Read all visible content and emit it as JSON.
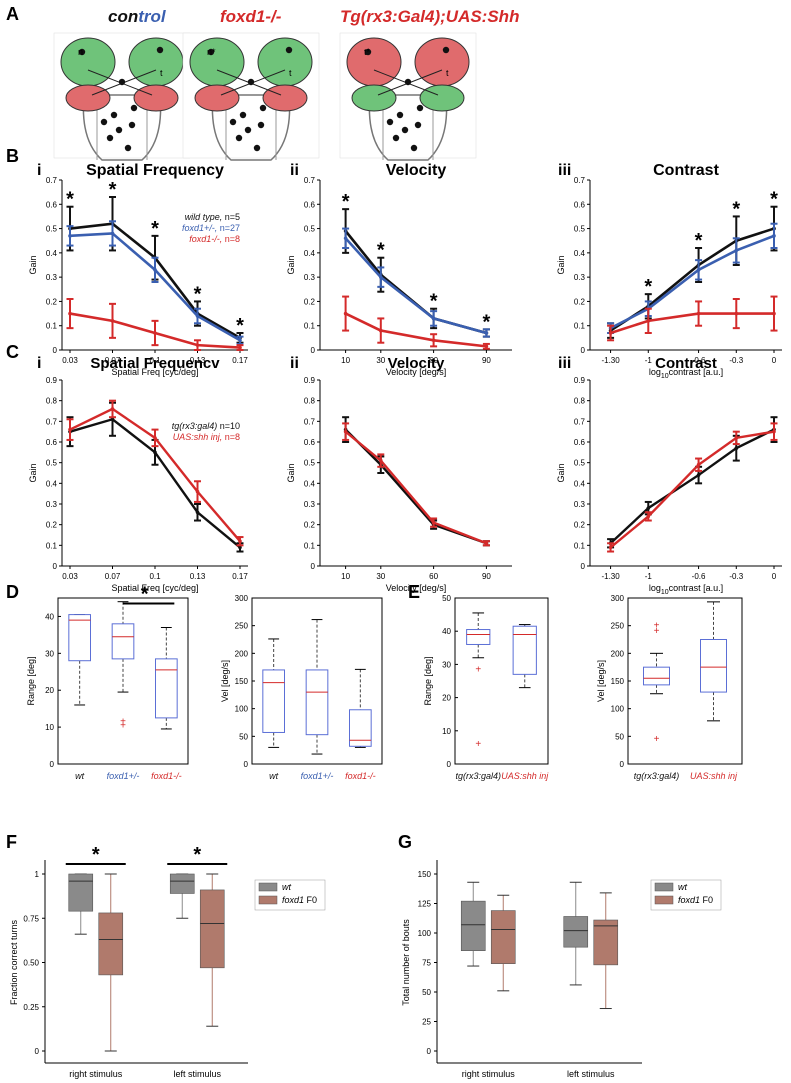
{
  "colors": {
    "black": "#111111",
    "blue": "#3a5fb0",
    "red": "#d42a2a",
    "wt_box": "#8a8a8a",
    "foxd1_box": "#b07a6c",
    "boxplot_blue": "#5b6fd6",
    "green": "#5fb86a",
    "pink": "#e2585f"
  },
  "panel_A": {
    "letter": "A",
    "titles": [
      {
        "segments": [
          {
            "text": "con",
            "color": "black"
          },
          {
            "text": "trol",
            "color": "blue"
          }
        ]
      },
      {
        "segments": [
          {
            "text": "foxd1-/-",
            "color": "red"
          }
        ]
      },
      {
        "segments": [
          {
            "text": "Tg(rx3:Gal4);UAS:Shh",
            "color": "red"
          }
        ]
      }
    ],
    "labels": [
      "n",
      "t",
      "n*",
      "t",
      "t*",
      "t"
    ]
  },
  "panel_labels": {
    "B": "B",
    "C": "C",
    "D": "D",
    "E": "E",
    "F": "F",
    "G": "G"
  },
  "chart_data": [
    {
      "id": "B_i",
      "roman": "i",
      "type": "line",
      "title": "Spatial Frequency",
      "xlabel": "Spatial Freq [cyc/deg]",
      "ylabel": "Gain",
      "ylim": [
        0,
        0.7
      ],
      "y_ticks": [
        "0",
        "0.1",
        "0.2",
        "0.3",
        "0.4",
        "0.5",
        "0.6",
        "0.7"
      ],
      "x_ticks": [
        "0.03",
        "0.07",
        "0.1",
        "0.13",
        "0.17"
      ],
      "series": [
        {
          "name": "wild type, n=5",
          "color": "black",
          "values": [
            0.5,
            0.52,
            0.38,
            0.15,
            0.05
          ],
          "err": [
            0.09,
            0.11,
            0.09,
            0.05,
            0.02
          ]
        },
        {
          "name": "foxd1+/-, n=27",
          "color": "blue",
          "values": [
            0.47,
            0.48,
            0.33,
            0.14,
            0.04
          ],
          "err": [
            0.04,
            0.05,
            0.05,
            0.03,
            0.015
          ]
        },
        {
          "name": "foxd1-/-, n=8",
          "color": "red",
          "values": [
            0.15,
            0.12,
            0.07,
            0.02,
            0.01
          ],
          "err": [
            0.06,
            0.07,
            0.05,
            0.02,
            0.01
          ]
        }
      ],
      "stars": [
        0,
        1,
        2,
        3,
        4
      ]
    },
    {
      "id": "B_ii",
      "roman": "ii",
      "type": "line",
      "title": "Velocity",
      "xlabel": "Velocity [deg/s]",
      "ylabel": "Gain",
      "ylim": [
        0,
        0.7
      ],
      "y_ticks": [
        "0",
        "0.1",
        "0.2",
        "0.3",
        "0.4",
        "0.5",
        "0.6",
        "0.7"
      ],
      "x_ticks": [
        "10",
        "30",
        "60",
        "90"
      ],
      "series": [
        {
          "name": "wild type",
          "color": "black",
          "values": [
            0.49,
            0.31,
            0.13,
            0.07
          ],
          "err": [
            0.09,
            0.07,
            0.04,
            0.015
          ]
        },
        {
          "name": "foxd1+/-",
          "color": "blue",
          "values": [
            0.46,
            0.3,
            0.13,
            0.07
          ],
          "err": [
            0.04,
            0.04,
            0.03,
            0.015
          ]
        },
        {
          "name": "foxd1-/-",
          "color": "red",
          "values": [
            0.15,
            0.08,
            0.04,
            0.015
          ],
          "err": [
            0.07,
            0.05,
            0.025,
            0.01
          ]
        }
      ],
      "stars": [
        0,
        1,
        2,
        3
      ]
    },
    {
      "id": "B_iii",
      "roman": "iii",
      "type": "line",
      "title": "Contrast",
      "xlabel": "log10contrast [a.u.]",
      "xlabel_main": "log",
      "xlabel_sub": "10",
      "xlabel_rest": "contrast [a.u.]",
      "ylabel": "Gain",
      "ylim": [
        0,
        0.7
      ],
      "y_ticks": [
        "0",
        "0.1",
        "0.2",
        "0.3",
        "0.4",
        "0.5",
        "0.6",
        "0.7"
      ],
      "x_ticks": [
        "-1.30",
        "-1",
        "-0.6",
        "-0.3",
        "0"
      ],
      "series": [
        {
          "name": "wild type",
          "color": "black",
          "values": [
            0.08,
            0.18,
            0.35,
            0.45,
            0.5
          ],
          "err": [
            0.03,
            0.05,
            0.07,
            0.1,
            0.09
          ]
        },
        {
          "name": "foxd1+/-",
          "color": "blue",
          "values": [
            0.09,
            0.17,
            0.33,
            0.41,
            0.47
          ],
          "err": [
            0.02,
            0.03,
            0.04,
            0.05,
            0.05
          ]
        },
        {
          "name": "foxd1-/-",
          "color": "red",
          "values": [
            0.07,
            0.12,
            0.15,
            0.15,
            0.15
          ],
          "err": [
            0.03,
            0.05,
            0.05,
            0.06,
            0.07
          ]
        }
      ],
      "stars": [
        1,
        2,
        3,
        4
      ]
    },
    {
      "id": "C_i",
      "roman": "i",
      "type": "line",
      "title": "Spatial Frequencv",
      "xlabel": "Spatial Freq [cyc/deg]",
      "ylabel": "Gain",
      "ylim": [
        0,
        0.9
      ],
      "y_ticks": [
        "0",
        "0.1",
        "0.2",
        "0.3",
        "0.4",
        "0.5",
        "0.6",
        "0.7",
        "0.8",
        "0.9"
      ],
      "x_ticks": [
        "0.03",
        "0.07",
        "0.1",
        "0.13",
        "0.17"
      ],
      "series": [
        {
          "name": "tg(rx3:gal4) n=10",
          "color": "black",
          "values": [
            0.65,
            0.71,
            0.55,
            0.26,
            0.09
          ],
          "err": [
            0.07,
            0.08,
            0.06,
            0.04,
            0.02
          ]
        },
        {
          "name": "UAS:shh inj, n=8",
          "color": "red",
          "values": [
            0.66,
            0.76,
            0.62,
            0.36,
            0.12
          ],
          "err": [
            0.05,
            0.04,
            0.04,
            0.05,
            0.02
          ]
        }
      ],
      "stars": []
    },
    {
      "id": "C_ii",
      "roman": "ii",
      "type": "line",
      "title": "Velocity",
      "xlabel": "Velocity [deg/s]",
      "ylabel": "Gain",
      "ylim": [
        0,
        0.9
      ],
      "y_ticks": [
        "0",
        "0.1",
        "0.2",
        "0.3",
        "0.4",
        "0.5",
        "0.6",
        "0.7",
        "0.8",
        "0.9"
      ],
      "x_ticks": [
        "10",
        "30",
        "60",
        "90"
      ],
      "series": [
        {
          "name": "tg(rx3:gal4)",
          "color": "black",
          "values": [
            0.66,
            0.49,
            0.2,
            0.11
          ],
          "err": [
            0.06,
            0.04,
            0.02,
            0.01
          ]
        },
        {
          "name": "UAS:shh inj",
          "color": "red",
          "values": [
            0.65,
            0.51,
            0.21,
            0.11
          ],
          "err": [
            0.04,
            0.03,
            0.02,
            0.01
          ]
        }
      ],
      "stars": []
    },
    {
      "id": "C_iii",
      "roman": "iii",
      "type": "line",
      "title": "Contrast",
      "xlabel": "log10contrast [a.u.]",
      "xlabel_main": "log",
      "xlabel_sub": "10",
      "xlabel_rest": "contrast [a.u.]",
      "ylabel": "Gain",
      "ylim": [
        0,
        0.9
      ],
      "y_ticks": [
        "0",
        "0.1",
        "0.2",
        "0.3",
        "0.4",
        "0.5",
        "0.6",
        "0.7",
        "0.8",
        "0.9"
      ],
      "x_ticks": [
        "-1.30",
        "-1",
        "-0.6",
        "-0.3",
        "0"
      ],
      "series": [
        {
          "name": "tg(rx3:gal4)",
          "color": "black",
          "values": [
            0.11,
            0.28,
            0.44,
            0.57,
            0.66
          ],
          "err": [
            0.02,
            0.03,
            0.04,
            0.06,
            0.06
          ]
        },
        {
          "name": "UAS:shh inj",
          "color": "red",
          "values": [
            0.09,
            0.24,
            0.49,
            0.62,
            0.65
          ],
          "err": [
            0.02,
            0.02,
            0.03,
            0.03,
            0.04
          ]
        }
      ],
      "stars": []
    },
    {
      "id": "D_range",
      "type": "box",
      "ylabel": "Range [deg]",
      "ylim": [
        0,
        45
      ],
      "y_ticks": [
        "0",
        "10",
        "20",
        "30",
        "40"
      ],
      "categories": [
        "wt",
        "foxd1+/-",
        "foxd1-/-"
      ],
      "cat_colors": [
        "black",
        "blue",
        "red"
      ],
      "boxes": [
        {
          "q1": 28,
          "median": 39,
          "q3": 40.5,
          "whislo": 16,
          "whishi": 40.5,
          "outliers": []
        },
        {
          "q1": 28.5,
          "median": 34.5,
          "q3": 38,
          "whislo": 19.5,
          "whishi": 44,
          "outliers": [
            10.5,
            11.5
          ]
        },
        {
          "q1": 12.5,
          "median": 25.5,
          "q3": 28.5,
          "whislo": 9.5,
          "whishi": 37,
          "outliers": []
        }
      ],
      "sig": {
        "from": 1,
        "to": 2,
        "label": "*"
      }
    },
    {
      "id": "D_vel",
      "type": "box",
      "ylabel": "Vel [deg/s]",
      "ylim": [
        0,
        300
      ],
      "y_ticks": [
        "0",
        "50",
        "100",
        "150",
        "200",
        "250",
        "300"
      ],
      "categories": [
        "wt",
        "foxd1+/-",
        "foxd1-/-"
      ],
      "cat_colors": [
        "black",
        "blue",
        "red"
      ],
      "boxes": [
        {
          "q1": 57,
          "median": 147,
          "q3": 170,
          "whislo": 30,
          "whishi": 226,
          "outliers": []
        },
        {
          "q1": 53,
          "median": 130,
          "q3": 170,
          "whislo": 18,
          "whishi": 261,
          "outliers": []
        },
        {
          "q1": 32,
          "median": 43,
          "q3": 98,
          "whislo": 30,
          "whishi": 171,
          "outliers": []
        }
      ]
    },
    {
      "id": "E_range",
      "type": "box",
      "ylabel": "Range [deg]",
      "ylim": [
        0,
        50
      ],
      "y_ticks": [
        "0",
        "10",
        "20",
        "30",
        "40",
        "50"
      ],
      "categories": [
        "tg(rx3:gal4)",
        "UAS:shh inj"
      ],
      "cat_colors": [
        "black",
        "red"
      ],
      "boxes": [
        {
          "q1": 36,
          "median": 39,
          "q3": 40.5,
          "whislo": 32,
          "whishi": 45.5,
          "outliers": [
            28.5,
            6
          ]
        },
        {
          "q1": 27,
          "median": 39,
          "q3": 41.5,
          "whislo": 23,
          "whishi": 42,
          "outliers": []
        }
      ]
    },
    {
      "id": "E_vel",
      "type": "box",
      "ylabel": "Vel [deg/s]",
      "ylim": [
        0,
        300
      ],
      "y_ticks": [
        "0",
        "50",
        "100",
        "150",
        "200",
        "250",
        "300"
      ],
      "categories": [
        "tg(rx3:gal4)",
        "UAS:shh inj"
      ],
      "cat_colors": [
        "black",
        "red"
      ],
      "boxes": [
        {
          "q1": 143,
          "median": 155,
          "q3": 175,
          "whislo": 127,
          "whishi": 200,
          "outliers": [
            250,
            240,
            45
          ]
        },
        {
          "q1": 130,
          "median": 175,
          "q3": 225,
          "whislo": 78,
          "whishi": 293,
          "outliers": []
        }
      ]
    },
    {
      "id": "F",
      "type": "box",
      "ylabel": "Fraction correct turns",
      "ylim": [
        0,
        1
      ],
      "y_ticks": [
        "0",
        "0.25",
        "0.50",
        "0.75",
        "1"
      ],
      "categories": [
        "right stimulus",
        "left stimulus"
      ],
      "legend": [
        {
          "name": "wt",
          "color": "wt_box"
        },
        {
          "name": "foxd1",
          "suffix": " F0",
          "color": "foxd1_box"
        }
      ],
      "groups": [
        [
          {
            "q1": 0.79,
            "median": 0.96,
            "q3": 1.0,
            "whislo": 0.66,
            "whishi": 1.0
          },
          {
            "q1": 0.43,
            "median": 0.63,
            "q3": 0.78,
            "whislo": 0.0,
            "whishi": 1.0
          }
        ],
        [
          {
            "q1": 0.89,
            "median": 0.96,
            "q3": 1.0,
            "whislo": 0.75,
            "whishi": 1.0
          },
          {
            "q1": 0.47,
            "median": 0.72,
            "q3": 0.91,
            "whislo": 0.14,
            "whishi": 1.0
          }
        ]
      ],
      "sig_label": "*"
    },
    {
      "id": "G",
      "type": "box",
      "ylabel": "Total number of bouts",
      "ylim": [
        0,
        150
      ],
      "y_ticks": [
        "0",
        "25",
        "50",
        "75",
        "100",
        "125",
        "150"
      ],
      "categories": [
        "right stimulus",
        "left stimulus"
      ],
      "legend": [
        {
          "name": "wt",
          "color": "wt_box"
        },
        {
          "name": "foxd1",
          "suffix": " F0",
          "color": "foxd1_box"
        }
      ],
      "groups": [
        [
          {
            "q1": 85,
            "median": 107,
            "q3": 127,
            "whislo": 72,
            "whishi": 143
          },
          {
            "q1": 74,
            "median": 103,
            "q3": 119,
            "whislo": 51,
            "whishi": 132
          }
        ],
        [
          {
            "q1": 88,
            "median": 102,
            "q3": 114,
            "whislo": 56,
            "whishi": 143
          },
          {
            "q1": 73,
            "median": 106,
            "q3": 111,
            "whislo": 36,
            "whishi": 134
          }
        ]
      ]
    }
  ]
}
